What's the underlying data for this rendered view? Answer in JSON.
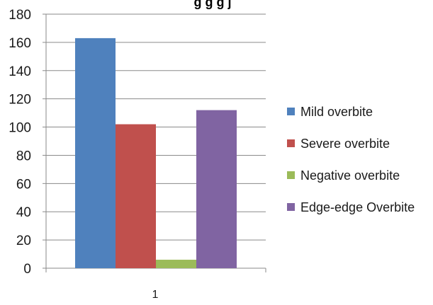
{
  "chart_data": {
    "type": "bar",
    "title": "g   g   g     j",
    "categories": [
      "1"
    ],
    "series": [
      {
        "name": "Mild overbite",
        "values": [
          163
        ],
        "color": "#4f81bd"
      },
      {
        "name": "Severe overbite",
        "values": [
          102
        ],
        "color": "#c0504d"
      },
      {
        "name": "Negative overbite",
        "values": [
          6
        ],
        "color": "#9bbb59"
      },
      {
        "name": "Edge-edge Overbite",
        "values": [
          112
        ],
        "color": "#8064a2"
      }
    ],
    "ylim": [
      0,
      180
    ],
    "yticks": [
      0,
      20,
      40,
      60,
      80,
      100,
      120,
      140,
      160,
      180
    ],
    "grid": true,
    "legend_position": "right"
  }
}
